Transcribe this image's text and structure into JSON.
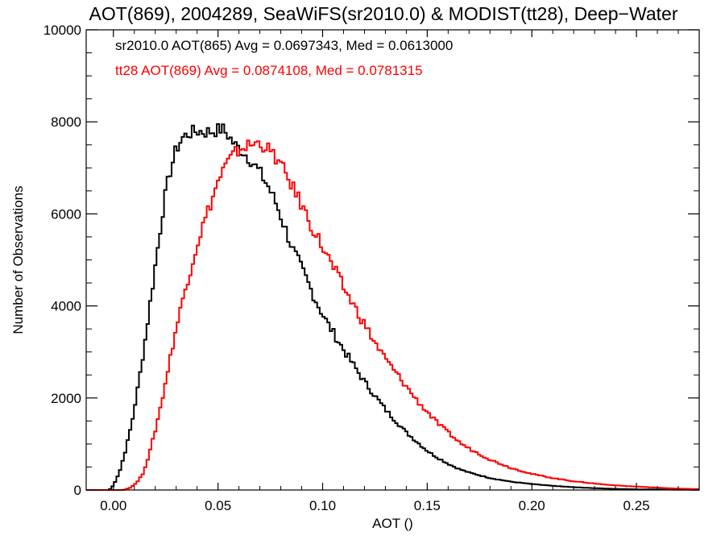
{
  "chart_data": {
    "type": "histogram",
    "title": "AOT(869), 2004289, SeaWiFS(sr2010.0) & MODIST(tt28), Deep−Water",
    "xlabel": "AOT ()",
    "ylabel": "Number of Observations",
    "xlim": [
      -0.013,
      0.28
    ],
    "ylim": [
      0,
      10000
    ],
    "x_ticks": [
      0.0,
      0.05,
      0.1,
      0.15,
      0.2,
      0.25
    ],
    "x_tick_labels": [
      "0.00",
      "0.05",
      "0.10",
      "0.15",
      "0.20",
      "0.25"
    ],
    "y_ticks": [
      0,
      2000,
      4000,
      6000,
      8000,
      10000
    ],
    "y_tick_labels": [
      "0",
      "2000",
      "4000",
      "6000",
      "8000",
      "10000"
    ],
    "grid": false,
    "series": [
      {
        "annotation": "sr2010.0 AOT(865) Avg = 0.0697343, Med = 0.0613000",
        "color": "#000000",
        "points": [
          [
            -0.013,
            0
          ],
          [
            -0.002,
            0
          ],
          [
            0.0,
            100
          ],
          [
            0.003,
            400
          ],
          [
            0.006,
            900
          ],
          [
            0.009,
            1500
          ],
          [
            0.012,
            2300
          ],
          [
            0.015,
            3200
          ],
          [
            0.018,
            4200
          ],
          [
            0.021,
            5200
          ],
          [
            0.024,
            6200
          ],
          [
            0.027,
            6900
          ],
          [
            0.03,
            7400
          ],
          [
            0.033,
            7650
          ],
          [
            0.036,
            7750
          ],
          [
            0.04,
            7800
          ],
          [
            0.044,
            7780
          ],
          [
            0.048,
            7800
          ],
          [
            0.052,
            7850
          ],
          [
            0.055,
            7700
          ],
          [
            0.058,
            7500
          ],
          [
            0.062,
            7350
          ],
          [
            0.066,
            7150
          ],
          [
            0.07,
            6900
          ],
          [
            0.074,
            6600
          ],
          [
            0.078,
            6200
          ],
          [
            0.082,
            5700
          ],
          [
            0.086,
            5200
          ],
          [
            0.09,
            4800
          ],
          [
            0.094,
            4400
          ],
          [
            0.098,
            4000
          ],
          [
            0.102,
            3650
          ],
          [
            0.106,
            3350
          ],
          [
            0.11,
            3050
          ],
          [
            0.115,
            2700
          ],
          [
            0.12,
            2350
          ],
          [
            0.125,
            2050
          ],
          [
            0.13,
            1750
          ],
          [
            0.135,
            1500
          ],
          [
            0.14,
            1250
          ],
          [
            0.145,
            1050
          ],
          [
            0.15,
            850
          ],
          [
            0.155,
            700
          ],
          [
            0.16,
            570
          ],
          [
            0.165,
            460
          ],
          [
            0.17,
            380
          ],
          [
            0.18,
            260
          ],
          [
            0.19,
            180
          ],
          [
            0.2,
            130
          ],
          [
            0.21,
            90
          ],
          [
            0.22,
            60
          ],
          [
            0.23,
            40
          ],
          [
            0.24,
            25
          ],
          [
            0.25,
            15
          ],
          [
            0.26,
            10
          ],
          [
            0.28,
            5
          ]
        ]
      },
      {
        "annotation": "tt28 AOT(869) Avg = 0.0874108, Med = 0.0781315",
        "color": "#ff0000",
        "points": [
          [
            -0.013,
            0
          ],
          [
            0.005,
            0
          ],
          [
            0.008,
            50
          ],
          [
            0.011,
            150
          ],
          [
            0.014,
            350
          ],
          [
            0.017,
            750
          ],
          [
            0.02,
            1300
          ],
          [
            0.023,
            1900
          ],
          [
            0.026,
            2600
          ],
          [
            0.029,
            3300
          ],
          [
            0.032,
            3900
          ],
          [
            0.035,
            4500
          ],
          [
            0.038,
            5000
          ],
          [
            0.041,
            5500
          ],
          [
            0.044,
            5900
          ],
          [
            0.047,
            6300
          ],
          [
            0.05,
            6700
          ],
          [
            0.053,
            7000
          ],
          [
            0.056,
            7200
          ],
          [
            0.059,
            7350
          ],
          [
            0.062,
            7450
          ],
          [
            0.066,
            7500
          ],
          [
            0.07,
            7550
          ],
          [
            0.074,
            7400
          ],
          [
            0.078,
            7200
          ],
          [
            0.082,
            6900
          ],
          [
            0.086,
            6550
          ],
          [
            0.09,
            6200
          ],
          [
            0.094,
            5800
          ],
          [
            0.098,
            5450
          ],
          [
            0.102,
            5100
          ],
          [
            0.106,
            4750
          ],
          [
            0.11,
            4400
          ],
          [
            0.115,
            4000
          ],
          [
            0.12,
            3600
          ],
          [
            0.125,
            3200
          ],
          [
            0.13,
            2850
          ],
          [
            0.135,
            2550
          ],
          [
            0.14,
            2250
          ],
          [
            0.145,
            1950
          ],
          [
            0.15,
            1700
          ],
          [
            0.155,
            1450
          ],
          [
            0.16,
            1250
          ],
          [
            0.165,
            1050
          ],
          [
            0.17,
            900
          ],
          [
            0.18,
            660
          ],
          [
            0.19,
            480
          ],
          [
            0.2,
            350
          ],
          [
            0.21,
            260
          ],
          [
            0.22,
            190
          ],
          [
            0.23,
            140
          ],
          [
            0.24,
            100
          ],
          [
            0.25,
            75
          ],
          [
            0.26,
            50
          ],
          [
            0.27,
            30
          ],
          [
            0.28,
            20
          ]
        ]
      }
    ]
  }
}
